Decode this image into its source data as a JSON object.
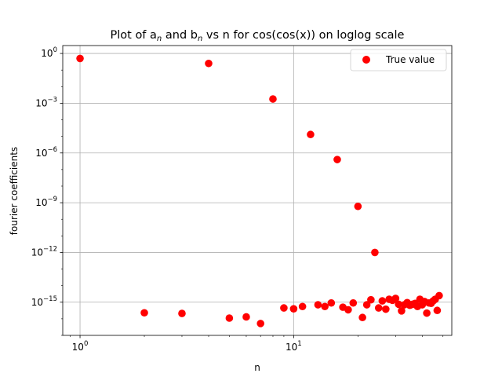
{
  "chart_data": {
    "type": "scatter",
    "title": "Plot of a",
    "title_sub_a": "n",
    "title_mid": " and b",
    "title_sub_b": "n",
    "title_end": " vs n for cos(cos(x)) on loglog scale",
    "xlabel": "n",
    "ylabel": "fourier coefficients",
    "xscale": "log",
    "yscale": "log",
    "xlim": [
      0.83,
      55
    ],
    "ylim": [
      1e-17,
      3
    ],
    "grid": true,
    "x_major_ticks": [
      1,
      10
    ],
    "x_tick_labels": [
      {
        "base": "10",
        "exp": "0"
      },
      {
        "base": "10",
        "exp": "1"
      }
    ],
    "y_major_ticks": [
      1,
      0.001,
      1e-06,
      1e-09,
      1e-12,
      1e-15
    ],
    "y_tick_labels": [
      {
        "base": "10",
        "exp": "0"
      },
      {
        "base": "10",
        "exp": "−3"
      },
      {
        "base": "10",
        "exp": "−6"
      },
      {
        "base": "10",
        "exp": "−9"
      },
      {
        "base": "10",
        "exp": "−12"
      },
      {
        "base": "10",
        "exp": "−15"
      }
    ],
    "legend_position": "top-right",
    "marker_color": "#ff0000",
    "series": [
      {
        "name": "True value",
        "points": [
          [
            1,
            0.5
          ],
          [
            2,
            2.3e-16
          ],
          [
            3,
            2.1e-16
          ],
          [
            4,
            0.25
          ],
          [
            5,
            1.1e-16
          ],
          [
            6,
            1.3e-16
          ],
          [
            7,
            5.2e-17
          ],
          [
            8,
            0.0018
          ],
          [
            9,
            4.5e-16
          ],
          [
            10,
            4e-16
          ],
          [
            11,
            5.5e-16
          ],
          [
            12,
            1.3e-05
          ],
          [
            13,
            7e-16
          ],
          [
            14,
            5.5e-16
          ],
          [
            15,
            9e-16
          ],
          [
            16,
            4e-07
          ],
          [
            17,
            5e-16
          ],
          [
            18,
            3.5e-16
          ],
          [
            19,
            9e-16
          ],
          [
            20,
            6e-10
          ],
          [
            21,
            1.2e-16
          ],
          [
            22,
            7e-16
          ],
          [
            23,
            1.4e-15
          ],
          [
            24,
            1e-12
          ],
          [
            25,
            4.5e-16
          ],
          [
            26,
            1.2e-15
          ],
          [
            27,
            3.8e-16
          ],
          [
            28,
            1.5e-15
          ],
          [
            29,
            1.3e-15
          ],
          [
            30,
            1.7e-15
          ],
          [
            31,
            7.5e-16
          ],
          [
            32,
            3e-16
          ],
          [
            33,
            7e-16
          ],
          [
            34,
            9.5e-16
          ],
          [
            35,
            6.5e-16
          ],
          [
            36,
            7.5e-16
          ],
          [
            37,
            8.5e-16
          ],
          [
            38,
            5.5e-16
          ],
          [
            39,
            1.5e-15
          ],
          [
            40,
            7e-16
          ],
          [
            41,
            1.1e-15
          ],
          [
            42,
            2.2e-16
          ],
          [
            43,
            9e-16
          ],
          [
            44,
            8.5e-16
          ],
          [
            45,
            1.2e-15
          ],
          [
            46,
            1.5e-15
          ],
          [
            47,
            3.2e-16
          ],
          [
            48,
            2.5e-15
          ]
        ]
      }
    ]
  },
  "colors": {
    "marker": "#ff0000",
    "grid": "#b0b0b0",
    "axes": "#000000",
    "legend_border": "#cccccc"
  }
}
